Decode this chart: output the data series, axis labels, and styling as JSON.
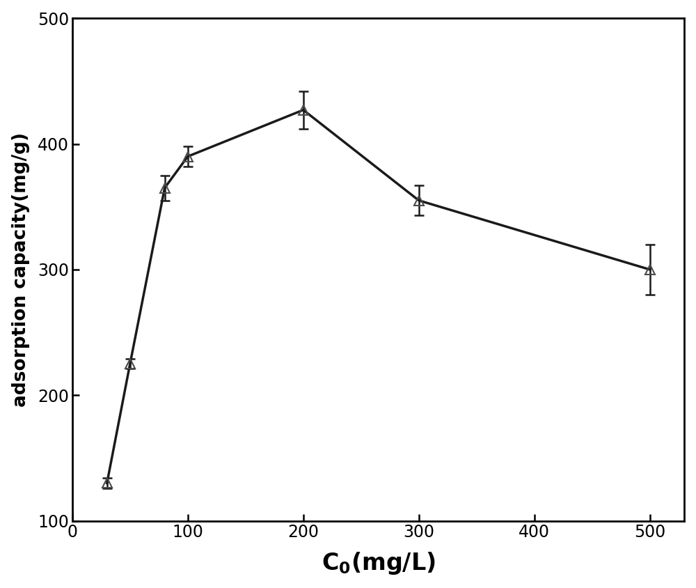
{
  "x": [
    30,
    50,
    80,
    100,
    200,
    300,
    500
  ],
  "y": [
    130,
    225,
    365,
    390,
    427,
    355,
    300
  ],
  "yerr": [
    4,
    4,
    10,
    8,
    15,
    12,
    20
  ],
  "xlabel": "$\\mathbf{C_0}$(mg/L)",
  "ylabel": "adsorption capacity(mg/g)",
  "xlim": [
    0,
    530
  ],
  "ylim": [
    100,
    500
  ],
  "xticks": [
    0,
    100,
    200,
    300,
    400,
    500
  ],
  "yticks": [
    100,
    200,
    300,
    400,
    500
  ],
  "line_color": "#1a1a1a",
  "marker_color": "#4a4a4a",
  "marker": "^",
  "markersize": 10,
  "linewidth": 2.5,
  "capsize": 5,
  "elinewidth": 1.8,
  "tick_fontsize": 17,
  "xlabel_fontsize": 24,
  "ylabel_fontsize": 19
}
